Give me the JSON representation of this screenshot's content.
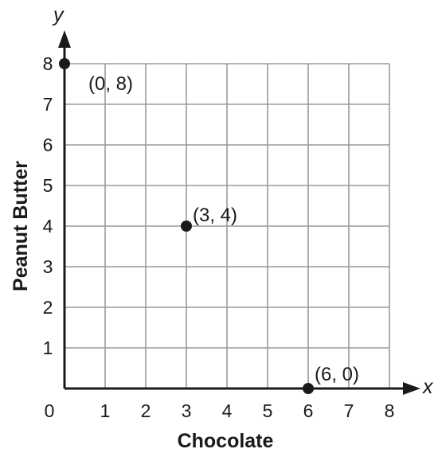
{
  "chart_data": {
    "type": "scatter",
    "xlabel": "Chocolate",
    "ylabel": "Peanut Butter",
    "x_axis_letter": "x",
    "y_axis_letter": "y",
    "xlim": [
      0,
      8
    ],
    "ylim": [
      0,
      8
    ],
    "x_ticks": [
      "0",
      "1",
      "2",
      "3",
      "4",
      "5",
      "6",
      "7",
      "8"
    ],
    "y_ticks": [
      "1",
      "2",
      "3",
      "4",
      "5",
      "6",
      "7",
      "8"
    ],
    "grid": true,
    "points": [
      {
        "x": 0,
        "y": 8,
        "label": "(0, 8)"
      },
      {
        "x": 3,
        "y": 4,
        "label": "(3, 4)"
      },
      {
        "x": 6,
        "y": 0,
        "label": "(6, 0)"
      }
    ],
    "colors": {
      "grid": "#9a9a9a",
      "axis": "#1a1a1a",
      "point": "#1a1a1a"
    }
  }
}
